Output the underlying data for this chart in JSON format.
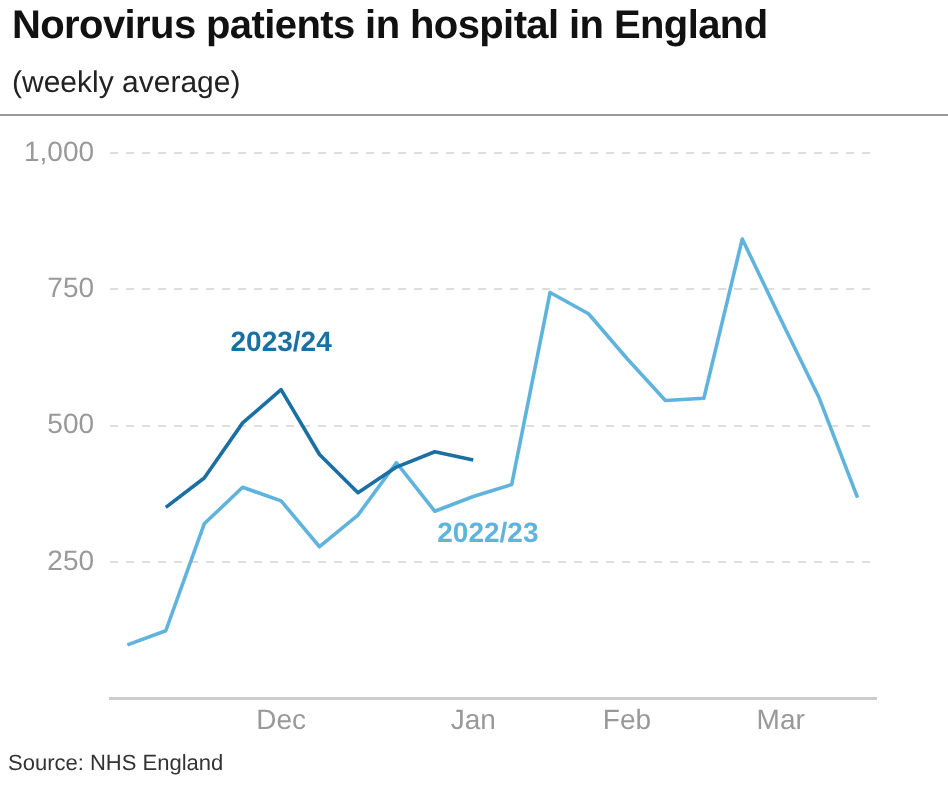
{
  "chart_data": {
    "type": "line",
    "title": "Norovirus patients in hospital in England",
    "subtitle": "(weekly average)",
    "annotations": [
      "Source: NHS England"
    ],
    "categories": [
      null,
      null,
      null,
      null,
      "Dec",
      null,
      null,
      null,
      null,
      "Jan",
      null,
      null,
      null,
      "Feb",
      null,
      null,
      null,
      "Mar",
      null,
      null
    ],
    "ylim": [
      0,
      1000
    ],
    "yticks": [
      {
        "value": 250,
        "label": "250"
      },
      {
        "value": 500,
        "label": "500"
      },
      {
        "value": 750,
        "label": "750"
      },
      {
        "value": 1000,
        "label": "1,000"
      }
    ],
    "grid": "y",
    "legend": false,
    "marker": "none",
    "line_style": "solid",
    "series": [
      {
        "name": "2023/24",
        "color": "#1a6fa3",
        "values": [
          null,
          350,
          404,
          505,
          566,
          447,
          377,
          424,
          452,
          437,
          null,
          null,
          null,
          null,
          null,
          null,
          null,
          null,
          null,
          null
        ]
      },
      {
        "name": "2022/23",
        "color": "#5fb3dc",
        "values": [
          98,
          124,
          320,
          387,
          362,
          278,
          336,
          432,
          343,
          370,
          392,
          744,
          705,
          623,
          546,
          550,
          842,
          695,
          551,
          368
        ]
      }
    ]
  }
}
